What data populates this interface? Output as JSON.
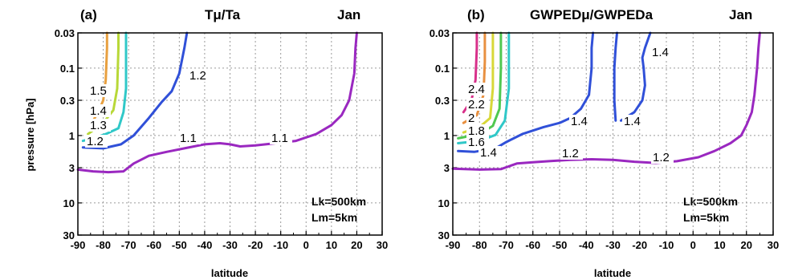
{
  "chart_data": [
    {
      "type": "line",
      "panel": "(a)",
      "title": "Tμ/Ta",
      "month": "Jan",
      "xlabel": "latitude",
      "ylabel": "pressure [hPa]",
      "xlim": [
        -90,
        30
      ],
      "ylim": [
        30,
        0.03
      ],
      "yscale": "log",
      "grid": true,
      "xticks": [
        "-90",
        "-80",
        "-70",
        "-60",
        "-50",
        "-40",
        "-30",
        "-20",
        "-10",
        "0",
        "10",
        "20",
        "30"
      ],
      "yticks": [
        "0.03",
        "0.1",
        "0.3",
        "1",
        "3",
        "10",
        "30"
      ],
      "notes": [
        "Lk=500km",
        "Lm=5km"
      ],
      "series": [
        {
          "label": "1.5",
          "color": "#e8a040",
          "points": [
            [
              -84,
              0.6
            ],
            [
              -82,
              0.45
            ],
            [
              -80,
              0.3
            ],
            [
              -79,
              0.15
            ],
            [
              -78.5,
              0.05
            ],
            [
              -78.5,
              0.03
            ]
          ]
        },
        {
          "label": "1.4",
          "color": "#b8d838",
          "points": [
            [
              -86,
              0.95
            ],
            [
              -80,
              0.65
            ],
            [
              -76,
              0.42
            ],
            [
              -74.5,
              0.2
            ],
            [
              -74,
              0.05
            ],
            [
              -74,
              0.03
            ]
          ]
        },
        {
          "label": "1.3",
          "color": "#30c8c8",
          "points": [
            [
              -88,
              1.2
            ],
            [
              -84,
              1.1
            ],
            [
              -79,
              0.95
            ],
            [
              -74,
              0.78
            ],
            [
              -72,
              0.45
            ],
            [
              -71,
              0.2
            ],
            [
              -71,
              0.05
            ],
            [
              -71,
              0.03
            ]
          ]
        },
        {
          "label": "1.2",
          "color": "#3050d8",
          "points": [
            [
              -88,
              1.5
            ],
            [
              -80,
              1.55
            ],
            [
              -73,
              1.35
            ],
            [
              -68,
              1.0
            ],
            [
              -62,
              0.55
            ],
            [
              -57,
              0.32
            ],
            [
              -53,
              0.22
            ],
            [
              -50,
              0.12
            ],
            [
              -48,
              0.05
            ],
            [
              -47,
              0.03
            ]
          ]
        },
        {
          "label": "1.1",
          "color": "#9a28c0",
          "points": [
            [
              -90,
              3.2
            ],
            [
              -84,
              3.4
            ],
            [
              -78,
              3.5
            ],
            [
              -72,
              3.4
            ],
            [
              -68,
              2.6
            ],
            [
              -62,
              2.0
            ],
            [
              -55,
              1.75
            ],
            [
              -48,
              1.55
            ],
            [
              -40,
              1.35
            ],
            [
              -34,
              1.3
            ],
            [
              -30,
              1.35
            ],
            [
              -26,
              1.45
            ],
            [
              -20,
              1.4
            ],
            [
              -12,
              1.3
            ],
            [
              -4,
              1.2
            ],
            [
              4,
              0.95
            ],
            [
              10,
              0.7
            ],
            [
              14,
              0.5
            ],
            [
              17,
              0.3
            ],
            [
              19,
              0.12
            ],
            [
              19.5,
              0.05
            ],
            [
              20,
              0.03
            ]
          ]
        }
      ]
    },
    {
      "type": "line",
      "panel": "(b)",
      "title": "GWPEDμ/GWPEDa",
      "month": "Jan",
      "xlabel": "latitude",
      "ylabel": "",
      "xlim": [
        -90,
        30
      ],
      "ylim": [
        30,
        0.03
      ],
      "yscale": "log",
      "grid": true,
      "xticks": [
        "-90",
        "-80",
        "-70",
        "-60",
        "-50",
        "-40",
        "-30",
        "-20",
        "-10",
        "0",
        "10",
        "20",
        "30"
      ],
      "yticks": [
        "0.03",
        "0.1",
        "0.3",
        "1",
        "3",
        "10",
        "30"
      ],
      "notes": [
        "Lk=500km",
        "Lm=5km"
      ],
      "series": [
        {
          "label": "2.4",
          "color": "#d8308a",
          "points": [
            [
              -86,
              0.45
            ],
            [
              -83,
              0.3
            ],
            [
              -81.5,
              0.15
            ],
            [
              -81,
              0.05
            ],
            [
              -81,
              0.03
            ]
          ]
        },
        {
          "label": "2.2",
          "color": "#e89040",
          "points": [
            [
              -86,
              0.65
            ],
            [
              -81,
              0.5
            ],
            [
              -78.5,
              0.25
            ],
            [
              -78,
              0.08
            ],
            [
              -78,
              0.03
            ]
          ]
        },
        {
          "label": "2",
          "color": "#d8d838",
          "points": [
            [
              -86,
              0.9
            ],
            [
              -80,
              0.75
            ],
            [
              -76,
              0.55
            ],
            [
              -75,
              0.2
            ],
            [
              -75,
              0.05
            ],
            [
              -75,
              0.03
            ]
          ]
        },
        {
          "label": "1.8",
          "color": "#50c850",
          "points": [
            [
              -88,
              1.1
            ],
            [
              -80,
              0.95
            ],
            [
              -75,
              0.72
            ],
            [
              -72.5,
              0.4
            ],
            [
              -72,
              0.1
            ],
            [
              -72,
              0.03
            ]
          ]
        },
        {
          "label": "1.6",
          "color": "#30c8c8",
          "points": [
            [
              -88,
              1.3
            ],
            [
              -80,
              1.2
            ],
            [
              -74,
              0.98
            ],
            [
              -70.5,
              0.6
            ],
            [
              -69,
              0.2
            ],
            [
              -69,
              0.05
            ],
            [
              -69,
              0.03
            ]
          ]
        },
        {
          "label": "1.4",
          "color": "#3050d8",
          "points": [
            [
              -88,
              1.7
            ],
            [
              -82,
              1.75
            ],
            [
              -74,
              1.55
            ],
            [
              -70,
              1.25
            ],
            [
              -64,
              0.95
            ],
            [
              -56,
              0.75
            ],
            [
              -50,
              0.65
            ],
            [
              -46,
              0.55
            ],
            [
              -42,
              0.4
            ],
            [
              -39,
              0.25
            ],
            [
              -38,
              0.1
            ],
            [
              -38,
              0.05
            ],
            [
              -37.5,
              0.03
            ]
          ]
        },
        {
          "label": "1.4",
          "color": "#3050d8",
          "points": [
            [
              -29,
              0.6
            ],
            [
              -29.5,
              0.3
            ],
            [
              -29.5,
              0.1
            ],
            [
              -29,
              0.05
            ],
            [
              -28.5,
              0.03
            ]
          ]
        },
        {
          "label": "1.4",
          "color": "#3050d8",
          "points": [
            [
              -27,
              0.6
            ],
            [
              -22,
              0.45
            ],
            [
              -19,
              0.3
            ],
            [
              -18,
              0.18
            ],
            [
              -18.5,
              0.1
            ],
            [
              -19,
              0.07
            ],
            [
              -18,
              0.05
            ],
            [
              -16,
              0.03
            ]
          ]
        },
        {
          "label": "1.2",
          "color": "#9a28c0",
          "points": [
            [
              -90,
              3.1
            ],
            [
              -80,
              3.2
            ],
            [
              -72,
              3.15
            ],
            [
              -66,
              2.6
            ],
            [
              -60,
              2.5
            ],
            [
              -54,
              2.4
            ],
            [
              -46,
              2.3
            ],
            [
              -38,
              2.25
            ],
            [
              -30,
              2.3
            ],
            [
              -22,
              2.45
            ],
            [
              -14,
              2.55
            ],
            [
              -6,
              2.4
            ],
            [
              2,
              2.1
            ],
            [
              8,
              1.7
            ],
            [
              14,
              1.3
            ],
            [
              18,
              1.0
            ],
            [
              20,
              0.7
            ],
            [
              22,
              0.45
            ],
            [
              23,
              0.25
            ],
            [
              24,
              0.1
            ],
            [
              24.5,
              0.05
            ],
            [
              25,
              0.03
            ]
          ]
        }
      ]
    }
  ]
}
